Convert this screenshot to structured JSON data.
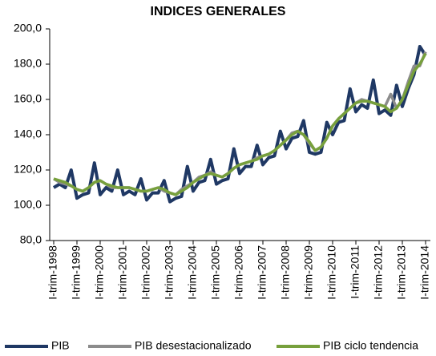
{
  "chart_data": {
    "type": "line",
    "title": "INDICES GENERALES",
    "categories": [
      "I-trim-1998",
      null,
      null,
      null,
      "I-trim-1999",
      null,
      null,
      null,
      "I-trim-2000",
      null,
      null,
      null,
      "I-trim-2001",
      null,
      null,
      null,
      "I-trim-2002",
      null,
      null,
      null,
      "I-trim-2003",
      null,
      null,
      null,
      "I-trim-2004",
      null,
      null,
      null,
      "I-trim-2005",
      null,
      null,
      null,
      "I-trim-2006",
      null,
      null,
      null,
      "I-trim-2007",
      null,
      null,
      null,
      "I-trim-2008",
      null,
      null,
      null,
      "I-trim-2009",
      null,
      null,
      null,
      "I-trim-2010",
      null,
      null,
      null,
      "I-trim-2011",
      null,
      null,
      null,
      "I-trim-2012",
      null,
      null,
      null,
      "I-trim-2013",
      null,
      null,
      null,
      "I-trim-2014"
    ],
    "series": [
      {
        "name": "PIB",
        "color": "#1f3864",
        "values": [
          110,
          112,
          110,
          120,
          104,
          106,
          107,
          124,
          106,
          110,
          108,
          120,
          106,
          108,
          106,
          115,
          103,
          107,
          107,
          114,
          102,
          104,
          105,
          122,
          108,
          113,
          114,
          126,
          112,
          114,
          115,
          132,
          118,
          122,
          122,
          134,
          123,
          127,
          128,
          142,
          132,
          138,
          139,
          148,
          130,
          129,
          130,
          147,
          140,
          147,
          148,
          166,
          153,
          157,
          155,
          171,
          152,
          154,
          151,
          168,
          156,
          166,
          174,
          190,
          185
        ]
      },
      {
        "name": "PIB desestacionalizado",
        "color": "#8c8c8c",
        "values": [
          115,
          113,
          112,
          111,
          109,
          108,
          110,
          113,
          114,
          112,
          110,
          110,
          110,
          110,
          109,
          108,
          108,
          109,
          110,
          108,
          107,
          106,
          109,
          111,
          113,
          116,
          117,
          119,
          117,
          116,
          118,
          121,
          123,
          124,
          125,
          127,
          128,
          129,
          131,
          134,
          137,
          141,
          142,
          140,
          135,
          131,
          133,
          138,
          145,
          149,
          152,
          155,
          158,
          160,
          159,
          158,
          157,
          156,
          163,
          155,
          160,
          170,
          179,
          179,
          187
        ]
      },
      {
        "name": "PIB ciclo tendencia",
        "color": "#77a03c",
        "values": [
          115,
          114,
          113,
          111,
          109,
          108,
          110,
          113,
          114,
          112,
          111,
          110,
          110,
          110,
          109,
          108,
          108,
          109,
          110,
          109,
          107,
          106,
          108,
          110,
          113,
          115,
          117,
          118,
          117,
          116,
          118,
          121,
          123,
          124,
          125,
          126,
          128,
          129,
          131,
          134,
          137,
          140,
          142,
          140,
          136,
          131,
          133,
          138,
          145,
          149,
          152,
          155,
          158,
          159,
          159,
          158,
          157,
          156,
          153,
          155,
          160,
          168,
          176,
          180,
          186
        ]
      }
    ],
    "ylim": [
      80,
      200
    ],
    "yticks": [
      {
        "value": 80,
        "label": "80,0"
      },
      {
        "value": 100,
        "label": "100,0"
      },
      {
        "value": 120,
        "label": "120,0"
      },
      {
        "value": 140,
        "label": "140,0"
      },
      {
        "value": 160,
        "label": "160,0"
      },
      {
        "value": 180,
        "label": "180,0"
      },
      {
        "value": 200,
        "label": "200,0"
      }
    ],
    "grid": false
  }
}
